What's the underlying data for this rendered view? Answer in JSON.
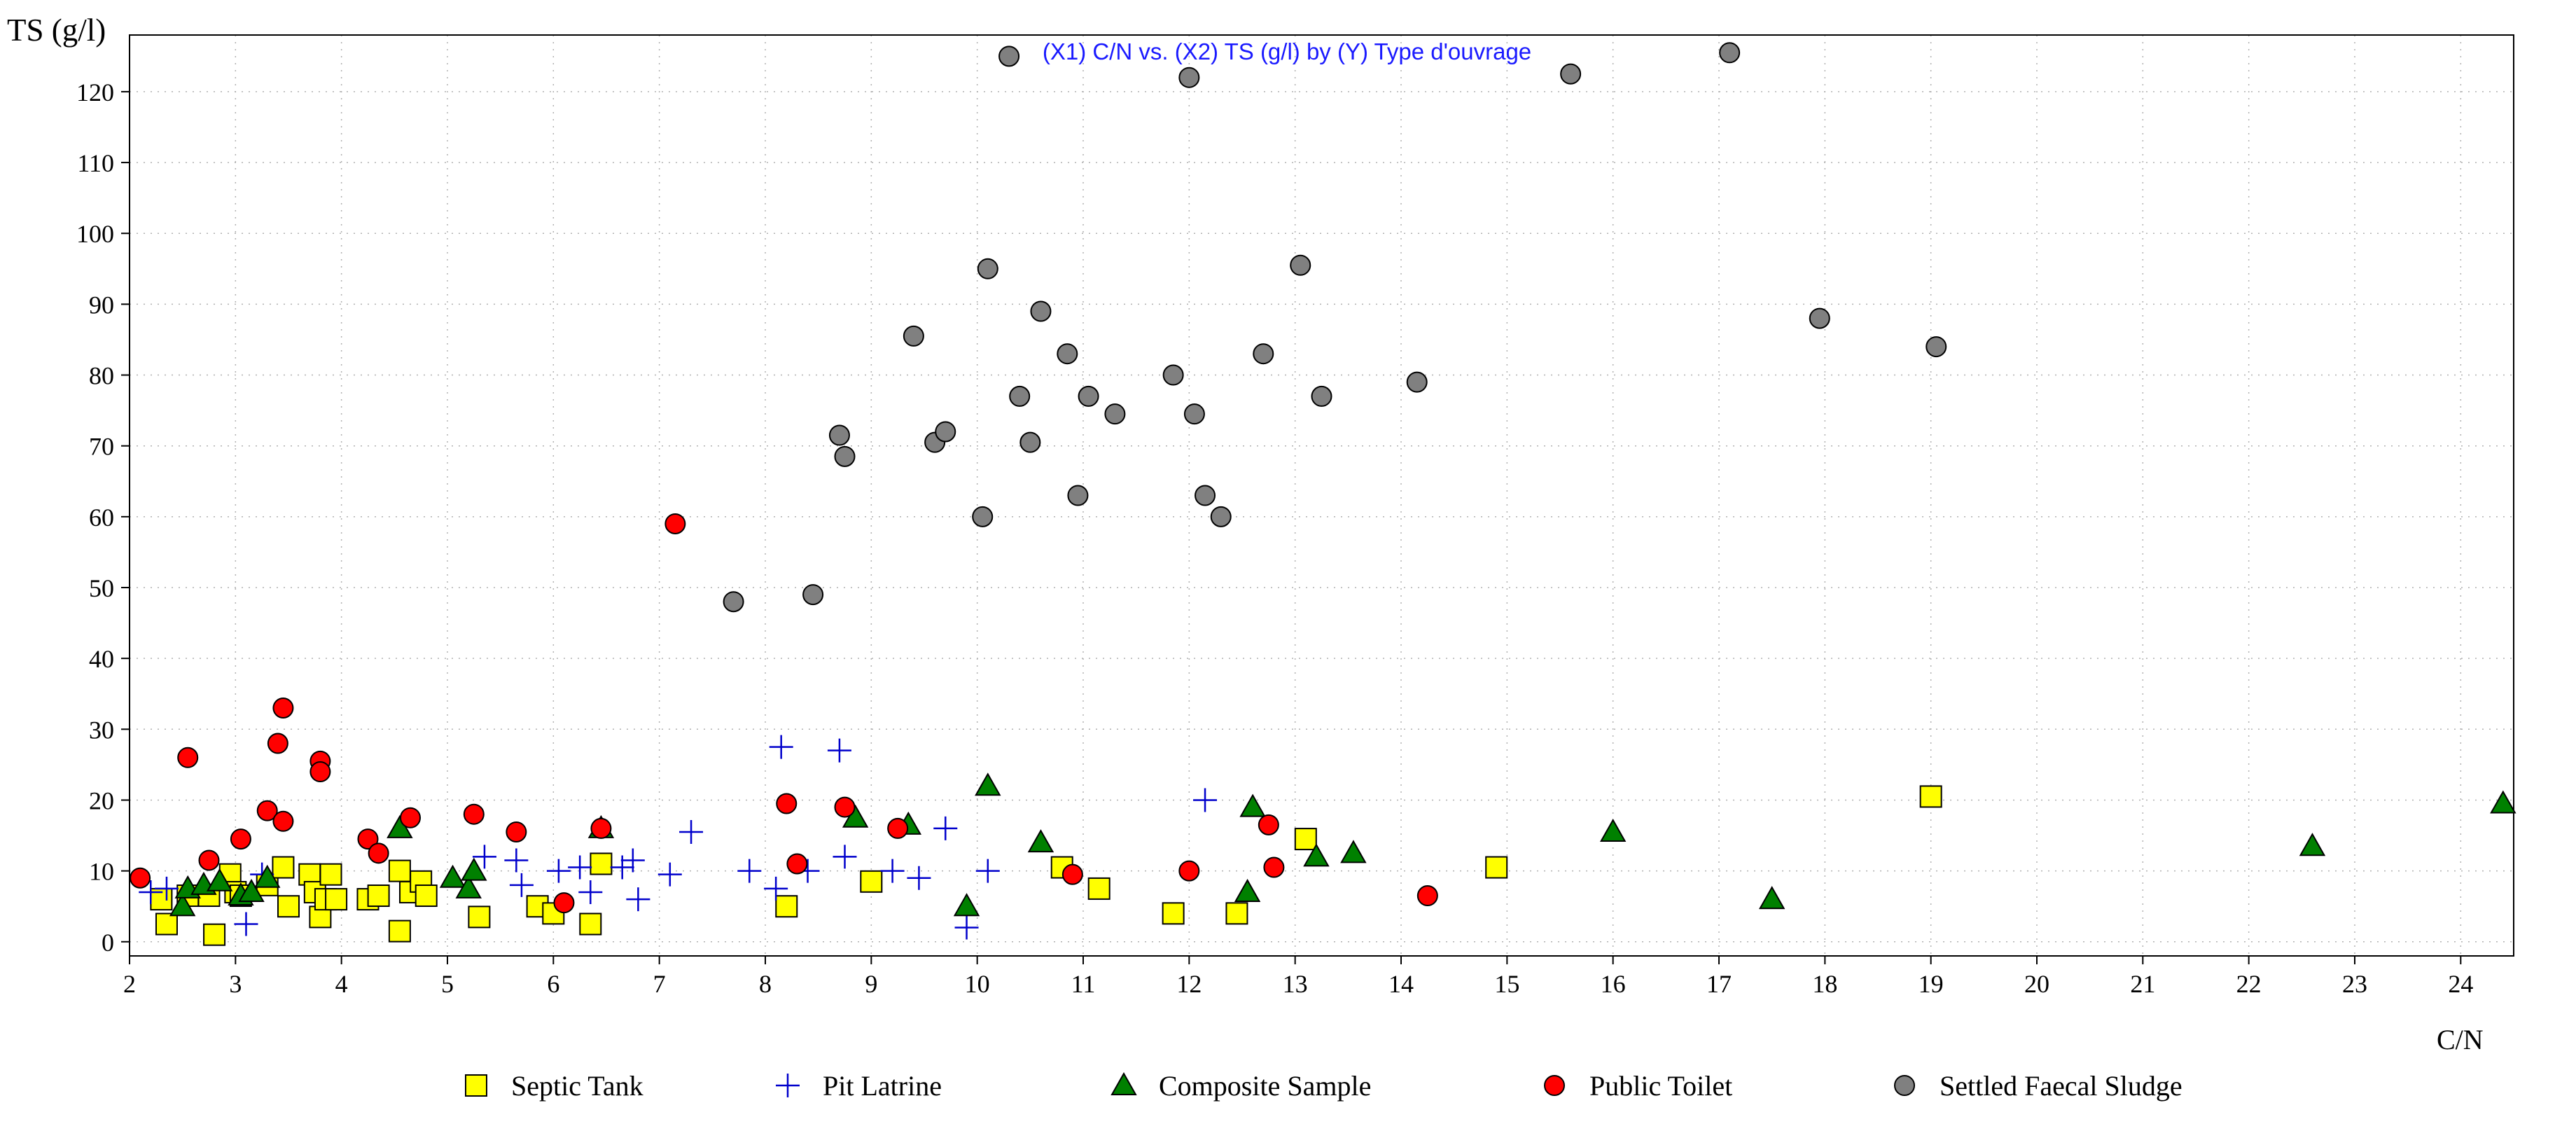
{
  "chart_data": {
    "type": "scatter",
    "title": "(X1) C/N vs. (X2) TS (g/l) by (Y) Type d'ouvrage",
    "xlabel": "C/N",
    "ylabel": "TS (g/l)",
    "xlim": [
      2,
      24.5
    ],
    "ylim": [
      -2,
      128
    ],
    "x_ticks": [
      2,
      3,
      4,
      5,
      6,
      7,
      8,
      9,
      10,
      11,
      12,
      13,
      14,
      15,
      16,
      17,
      18,
      19,
      20,
      21,
      22,
      23,
      24
    ],
    "y_ticks": [
      0,
      10,
      20,
      30,
      40,
      50,
      60,
      70,
      80,
      90,
      100,
      110,
      120
    ],
    "grid": true,
    "legend_position": "bottom",
    "series": [
      {
        "name": "Septic Tank",
        "marker": "square",
        "color": "#ffff00",
        "points": [
          [
            2.3,
            6
          ],
          [
            2.35,
            2.5
          ],
          [
            2.55,
            6.5
          ],
          [
            2.75,
            6.5
          ],
          [
            2.8,
            1
          ],
          [
            2.95,
            9.5
          ],
          [
            3.0,
            7
          ],
          [
            3.05,
            6.5
          ],
          [
            3.3,
            8
          ],
          [
            3.45,
            10.5
          ],
          [
            3.5,
            5
          ],
          [
            3.7,
            9.5
          ],
          [
            3.75,
            7
          ],
          [
            3.8,
            3.5
          ],
          [
            3.85,
            6
          ],
          [
            3.9,
            9.5
          ],
          [
            3.95,
            6
          ],
          [
            4.25,
            6
          ],
          [
            4.35,
            6.5
          ],
          [
            4.55,
            10
          ],
          [
            4.55,
            1.5
          ],
          [
            4.65,
            7
          ],
          [
            4.75,
            8.5
          ],
          [
            4.8,
            6.5
          ],
          [
            5.3,
            3.5
          ],
          [
            5.85,
            5
          ],
          [
            6.0,
            4
          ],
          [
            6.35,
            2.5
          ],
          [
            6.45,
            11
          ],
          [
            8.2,
            5
          ],
          [
            9.0,
            8.5
          ],
          [
            10.8,
            10.5
          ],
          [
            11.15,
            7.5
          ],
          [
            11.85,
            4
          ],
          [
            12.45,
            4
          ],
          [
            13.1,
            14.5
          ],
          [
            14.9,
            10.5
          ],
          [
            19.0,
            20.5
          ]
        ]
      },
      {
        "name": "Pit Latrine",
        "marker": "plus",
        "color": "#0000cc",
        "points": [
          [
            2.2,
            7
          ],
          [
            2.35,
            7.5
          ],
          [
            3.1,
            2.5
          ],
          [
            3.25,
            9.5
          ],
          [
            5.35,
            12
          ],
          [
            5.65,
            11.5
          ],
          [
            5.7,
            8
          ],
          [
            6.05,
            10
          ],
          [
            6.25,
            10.5
          ],
          [
            6.35,
            7
          ],
          [
            6.65,
            10.5
          ],
          [
            6.75,
            11.5
          ],
          [
            6.8,
            6
          ],
          [
            7.1,
            9.5
          ],
          [
            7.3,
            15.5
          ],
          [
            7.85,
            10
          ],
          [
            8.1,
            7.5
          ],
          [
            8.15,
            27.5
          ],
          [
            8.4,
            10
          ],
          [
            8.7,
            27
          ],
          [
            8.75,
            12
          ],
          [
            9.2,
            10
          ],
          [
            9.45,
            9
          ],
          [
            9.7,
            16
          ],
          [
            9.9,
            2
          ],
          [
            10.1,
            10
          ],
          [
            12.15,
            20
          ]
        ]
      },
      {
        "name": "Composite Sample",
        "marker": "triangle",
        "color": "#008000",
        "points": [
          [
            2.5,
            5
          ],
          [
            2.55,
            7.5
          ],
          [
            2.7,
            8
          ],
          [
            2.85,
            8.5
          ],
          [
            3.05,
            6.5
          ],
          [
            3.15,
            7
          ],
          [
            3.3,
            9
          ],
          [
            4.55,
            16
          ],
          [
            5.05,
            9
          ],
          [
            5.2,
            7.5
          ],
          [
            5.25,
            10
          ],
          [
            6.45,
            16
          ],
          [
            8.85,
            17.5
          ],
          [
            9.35,
            16.5
          ],
          [
            9.9,
            5
          ],
          [
            10.1,
            22
          ],
          [
            10.6,
            14
          ],
          [
            12.55,
            7
          ],
          [
            12.6,
            19
          ],
          [
            13.2,
            12
          ],
          [
            13.55,
            12.5
          ],
          [
            16.0,
            15.5
          ],
          [
            17.5,
            6
          ],
          [
            22.6,
            13.5
          ],
          [
            24.4,
            19.5
          ]
        ]
      },
      {
        "name": "Public Toilet",
        "marker": "circle",
        "color": "#ff0000",
        "points": [
          [
            2.1,
            9
          ],
          [
            2.55,
            26
          ],
          [
            2.75,
            11.5
          ],
          [
            3.05,
            14.5
          ],
          [
            3.3,
            18.5
          ],
          [
            3.4,
            28
          ],
          [
            3.45,
            33
          ],
          [
            3.45,
            17
          ],
          [
            3.8,
            25.5
          ],
          [
            3.8,
            24
          ],
          [
            4.25,
            14.5
          ],
          [
            4.35,
            12.5
          ],
          [
            4.65,
            17.5
          ],
          [
            5.25,
            18
          ],
          [
            5.65,
            15.5
          ],
          [
            6.1,
            5.5
          ],
          [
            6.45,
            16
          ],
          [
            7.15,
            59
          ],
          [
            8.2,
            19.5
          ],
          [
            8.3,
            11
          ],
          [
            8.75,
            19
          ],
          [
            9.25,
            16
          ],
          [
            10.9,
            9.5
          ],
          [
            12.0,
            10
          ],
          [
            12.75,
            16.5
          ],
          [
            12.8,
            10.5
          ],
          [
            14.25,
            6.5
          ]
        ]
      },
      {
        "name": "Settled Faecal Sludge",
        "marker": "circle",
        "color": "#808080",
        "points": [
          [
            7.7,
            48
          ],
          [
            8.45,
            49
          ],
          [
            8.7,
            71.5
          ],
          [
            8.75,
            68.5
          ],
          [
            9.4,
            85.5
          ],
          [
            9.6,
            70.5
          ],
          [
            9.7,
            72
          ],
          [
            10.05,
            60
          ],
          [
            10.1,
            95
          ],
          [
            10.3,
            125
          ],
          [
            10.4,
            77
          ],
          [
            10.5,
            70.5
          ],
          [
            10.6,
            89
          ],
          [
            10.85,
            83
          ],
          [
            10.95,
            63
          ],
          [
            11.05,
            77
          ],
          [
            11.3,
            74.5
          ],
          [
            11.85,
            80
          ],
          [
            12.0,
            122
          ],
          [
            12.05,
            74.5
          ],
          [
            12.15,
            63
          ],
          [
            12.3,
            60
          ],
          [
            12.7,
            83
          ],
          [
            13.05,
            95.5
          ],
          [
            13.25,
            77
          ],
          [
            14.15,
            79
          ],
          [
            15.6,
            122.5
          ],
          [
            17.1,
            125.5
          ],
          [
            17.95,
            88
          ],
          [
            19.05,
            84
          ]
        ]
      }
    ]
  }
}
